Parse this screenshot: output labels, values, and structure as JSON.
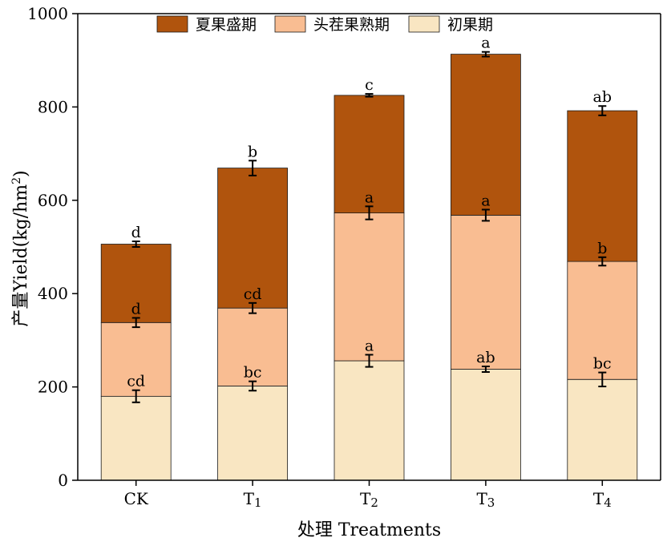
{
  "chart_data": {
    "type": "bar",
    "stacked": true,
    "categories": [
      "CK",
      "T1",
      "T2",
      "T3",
      "T4"
    ],
    "category_labels": [
      {
        "main": "CK",
        "sub": ""
      },
      {
        "main": "T",
        "sub": "1"
      },
      {
        "main": "T",
        "sub": "2"
      },
      {
        "main": "T",
        "sub": "3"
      },
      {
        "main": "T",
        "sub": "4"
      }
    ],
    "series": [
      {
        "name": "初果期",
        "color": "#f9e6c2",
        "values": [
          180,
          202,
          256,
          238,
          216
        ],
        "errors": [
          13,
          10,
          13,
          6,
          15
        ],
        "labels": [
          "cd",
          "bc",
          "a",
          "ab",
          "bc"
        ]
      },
      {
        "name": "头茬果熟期",
        "color": "#f9bd92",
        "values": [
          158,
          167,
          317,
          330,
          253
        ],
        "errors": [
          10,
          11,
          14,
          12,
          9
        ],
        "labels": [
          "d",
          "cd",
          "a",
          "a",
          "b"
        ]
      },
      {
        "name": "夏果盛期",
        "color": "#b0540d",
        "values": [
          168,
          300,
          252,
          345,
          323
        ],
        "errors": [
          6,
          16,
          3,
          5,
          10
        ],
        "labels": [
          "d",
          "b",
          "c",
          "a",
          "ab"
        ]
      }
    ],
    "legend_order": [
      "夏果盛期",
      "头茬果熟期",
      "初果期"
    ],
    "legend_position": "top",
    "ylabel": {
      "prefix": "产量Yield(kg/hm",
      "sup": "2",
      "suffix": ")"
    },
    "xlabel": "处理 Treatments",
    "ylim": [
      0,
      1000
    ],
    "yticks": [
      0,
      200,
      400,
      600,
      800,
      1000
    ],
    "grid": false
  }
}
